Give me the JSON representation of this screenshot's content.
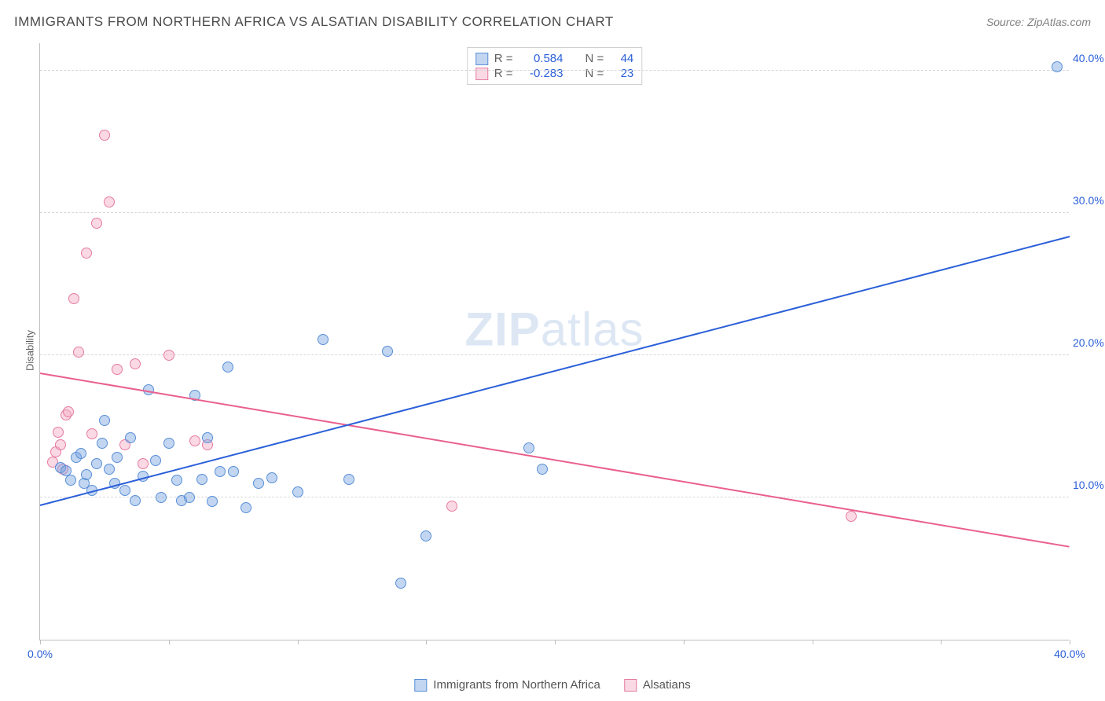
{
  "header": {
    "title": "IMMIGRANTS FROM NORTHERN AFRICA VS ALSATIAN DISABILITY CORRELATION CHART",
    "source": "Source: ZipAtlas.com"
  },
  "watermark": {
    "bold": "ZIP",
    "light": "atlas"
  },
  "chart": {
    "type": "scatter",
    "ylabel": "Disability",
    "background_color": "#ffffff",
    "grid_color": "#d8d8d8",
    "axis_color": "#bfbfbf",
    "marker_radius": 7,
    "marker_stroke_width": 1,
    "xlim": [
      0,
      40
    ],
    "ylim": [
      0,
      42
    ],
    "xtick_positions": [
      0,
      5,
      10,
      15,
      20,
      25,
      30,
      35,
      40
    ],
    "xtick_labels": {
      "0": "0.0%",
      "40": "40.0%"
    },
    "ytick_positions": [
      10,
      20,
      30,
      40
    ],
    "ytick_labels": {
      "10": "10.0%",
      "20": "20.0%",
      "30": "30.0%",
      "40": "40.0%"
    },
    "ytick_color": "#2a5fd8",
    "series": {
      "blue": {
        "label": "Immigrants from Northern Africa",
        "fill": "rgba(120,165,225,0.45)",
        "stroke": "#5a8fd6",
        "line_color": "#2a5fd8",
        "R": "0.584",
        "N": "44",
        "trend": {
          "x1": 0,
          "y1": 9.4,
          "x2": 40,
          "y2": 28.3
        },
        "points": [
          [
            0.8,
            12.1
          ],
          [
            1.0,
            11.9
          ],
          [
            1.2,
            11.2
          ],
          [
            1.4,
            12.8
          ],
          [
            1.6,
            13.1
          ],
          [
            1.7,
            11.0
          ],
          [
            1.8,
            11.6
          ],
          [
            2.0,
            10.5
          ],
          [
            2.2,
            12.4
          ],
          [
            2.4,
            13.8
          ],
          [
            2.5,
            15.4
          ],
          [
            2.7,
            12.0
          ],
          [
            2.9,
            11.0
          ],
          [
            3.0,
            12.8
          ],
          [
            3.3,
            10.5
          ],
          [
            3.5,
            14.2
          ],
          [
            3.7,
            9.8
          ],
          [
            4.0,
            11.5
          ],
          [
            4.2,
            17.6
          ],
          [
            4.5,
            12.6
          ],
          [
            4.7,
            10.0
          ],
          [
            5.0,
            13.8
          ],
          [
            5.3,
            11.2
          ],
          [
            5.5,
            9.8
          ],
          [
            5.8,
            10.0
          ],
          [
            6.0,
            17.2
          ],
          [
            6.3,
            11.3
          ],
          [
            6.5,
            14.2
          ],
          [
            6.7,
            9.7
          ],
          [
            7.0,
            11.8
          ],
          [
            7.3,
            19.2
          ],
          [
            7.5,
            11.8
          ],
          [
            8.0,
            9.3
          ],
          [
            8.5,
            11.0
          ],
          [
            9.0,
            11.4
          ],
          [
            10.0,
            10.4
          ],
          [
            11.0,
            21.1
          ],
          [
            12.0,
            11.3
          ],
          [
            13.5,
            20.3
          ],
          [
            14.0,
            4.0
          ],
          [
            15.0,
            7.3
          ],
          [
            19.0,
            13.5
          ],
          [
            19.5,
            12.0
          ],
          [
            39.5,
            40.3
          ]
        ]
      },
      "pink": {
        "label": "Alsatians",
        "fill": "rgba(245,170,195,0.45)",
        "stroke": "#e57ba3",
        "line_color": "#ea5f8f",
        "R": "-0.283",
        "N": "23",
        "trend": {
          "x1": 0,
          "y1": 18.7,
          "x2": 40,
          "y2": 6.5
        },
        "points": [
          [
            0.5,
            12.5
          ],
          [
            0.6,
            13.2
          ],
          [
            0.7,
            14.6
          ],
          [
            0.8,
            13.7
          ],
          [
            0.9,
            12.0
          ],
          [
            1.0,
            15.8
          ],
          [
            1.1,
            16.0
          ],
          [
            1.3,
            24.0
          ],
          [
            1.5,
            20.2
          ],
          [
            1.8,
            27.2
          ],
          [
            2.0,
            14.5
          ],
          [
            2.2,
            29.3
          ],
          [
            2.5,
            35.5
          ],
          [
            2.7,
            30.8
          ],
          [
            3.0,
            19.0
          ],
          [
            3.3,
            13.7
          ],
          [
            3.7,
            19.4
          ],
          [
            4.0,
            12.4
          ],
          [
            5.0,
            20.0
          ],
          [
            6.0,
            14.0
          ],
          [
            6.5,
            13.7
          ],
          [
            16.0,
            9.4
          ],
          [
            31.5,
            8.7
          ]
        ]
      }
    }
  },
  "legend": {
    "stats_labels": {
      "R": "R =",
      "N": "N ="
    },
    "bottom_items": [
      "blue",
      "pink"
    ]
  }
}
